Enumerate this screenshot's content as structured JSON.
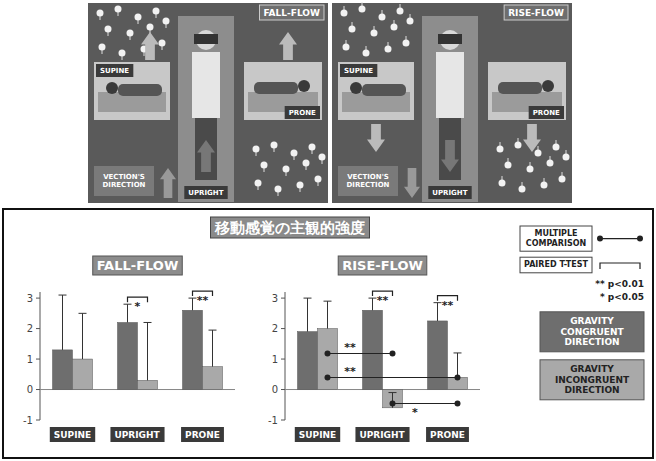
{
  "figure": {
    "scenes": [
      {
        "title": "FALL-FLOW",
        "direction": "up"
      },
      {
        "title": "RISE-FLOW",
        "direction": "down"
      }
    ],
    "postures": [
      "SUPINE",
      "UPRIGHT",
      "PRONE"
    ],
    "direction_label": "VECTION'S DIRECTION"
  },
  "chart_title": "移動感覚の主観的強度",
  "legend_texts": {
    "multiple": "MULTIPLE COMPARISON",
    "paired": "PAIRED T-TEST",
    "significance": [
      "** p<0.01",
      "* p<0.05"
    ]
  },
  "chart_data": [
    {
      "type": "bar",
      "title": "FALL-FLOW",
      "categories": [
        "SUPINE",
        "UPRIGHT",
        "PRONE"
      ],
      "series": [
        {
          "name": "GRAVITY CONGRUENT DIRECTION",
          "color": "#6e6e6e",
          "values": [
            1.3,
            2.2,
            2.6
          ],
          "errors": [
            1.8,
            0.6,
            0.4
          ]
        },
        {
          "name": "GRAVITY INCONGRUENT DIRECTION",
          "color": "#a9a9a9",
          "values": [
            1.0,
            0.3,
            0.75
          ],
          "errors": [
            1.5,
            1.9,
            1.2
          ]
        }
      ],
      "ylim": [
        -1,
        3.2
      ],
      "yticks": [
        -1,
        0,
        1,
        2,
        3
      ],
      "legend": "right",
      "comparisons": [
        {
          "kind": "paired",
          "from": [
            1,
            0
          ],
          "to": [
            1,
            1
          ],
          "label": "*"
        },
        {
          "kind": "paired",
          "from": [
            2,
            0
          ],
          "to": [
            2,
            1
          ],
          "label": "**"
        }
      ]
    },
    {
      "type": "bar",
      "title": "RISE-FLOW",
      "categories": [
        "SUPINE",
        "UPRIGHT",
        "PRONE"
      ],
      "series": [
        {
          "color": "#6e6e6e",
          "values": [
            1.9,
            2.6,
            2.25
          ],
          "errors": [
            1.1,
            0.4,
            0.6
          ]
        },
        {
          "color": "#a9a9a9",
          "values": [
            2.0,
            -0.6,
            0.4
          ],
          "errors": [
            0.9,
            0.5,
            0.8
          ]
        }
      ],
      "ylim": [
        -1,
        3.2
      ],
      "yticks": [
        -1,
        0,
        1,
        2,
        3
      ],
      "comparisons": [
        {
          "kind": "paired",
          "from": [
            1,
            0
          ],
          "to": [
            1,
            1
          ],
          "label": "**"
        },
        {
          "kind": "paired",
          "from": [
            2,
            0
          ],
          "to": [
            2,
            1
          ],
          "label": "**"
        },
        {
          "kind": "multiple",
          "from": [
            0,
            1
          ],
          "to": [
            1,
            1
          ],
          "label": "**"
        },
        {
          "kind": "multiple",
          "from": [
            0,
            1
          ],
          "to": [
            2,
            1
          ],
          "label": "**"
        },
        {
          "kind": "multiple",
          "from": [
            1,
            1
          ],
          "to": [
            2,
            1
          ],
          "label": "*"
        }
      ]
    }
  ]
}
